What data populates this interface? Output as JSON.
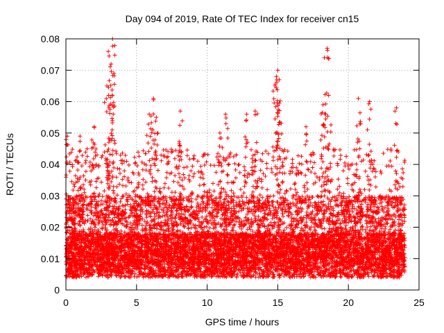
{
  "chart_data": {
    "type": "scatter",
    "title": "Day 094 of 2019, Rate Of TEC Index for receiver cn15",
    "xlabel": "GPS time / hours",
    "ylabel": "ROTI / TECUs",
    "xlim": [
      0,
      25
    ],
    "ylim": [
      0,
      0.08
    ],
    "x_ticks": [
      0,
      5,
      10,
      15,
      20,
      25
    ],
    "x_tick_labels": [
      "0",
      "5",
      "10",
      "15",
      "20",
      "25"
    ],
    "y_ticks": [
      0,
      0.01,
      0.02,
      0.03,
      0.04,
      0.05,
      0.06,
      0.07,
      0.08
    ],
    "y_tick_labels": [
      "0",
      "0.01",
      "0.02",
      "0.03",
      "0.04",
      "0.05",
      "0.06",
      "0.07",
      "0.08"
    ],
    "grid": true,
    "legend": "none",
    "marker": "+",
    "color": "#ff0000",
    "series": [
      {
        "name": "ROTI cn15",
        "x_range_hours": [
          0,
          24
        ],
        "baseline_roti": 0.012,
        "typical_max_roti": 0.04,
        "point_count_estimate": 9000,
        "notable_peaks": [
          {
            "x": 0.1,
            "y": 0.049
          },
          {
            "x": 1.0,
            "y": 0.049
          },
          {
            "x": 2.0,
            "y": 0.052
          },
          {
            "x": 2.9,
            "y": 0.065
          },
          {
            "x": 3.0,
            "y": 0.076
          },
          {
            "x": 3.2,
            "y": 0.072
          },
          {
            "x": 3.3,
            "y": 0.08
          },
          {
            "x": 3.4,
            "y": 0.069
          },
          {
            "x": 5.9,
            "y": 0.056
          },
          {
            "x": 6.2,
            "y": 0.061
          },
          {
            "x": 6.4,
            "y": 0.055
          },
          {
            "x": 8.1,
            "y": 0.057
          },
          {
            "x": 10.9,
            "y": 0.05
          },
          {
            "x": 11.3,
            "y": 0.056
          },
          {
            "x": 12.8,
            "y": 0.056
          },
          {
            "x": 13.4,
            "y": 0.057
          },
          {
            "x": 14.8,
            "y": 0.065
          },
          {
            "x": 14.9,
            "y": 0.068
          },
          {
            "x": 15.0,
            "y": 0.07
          },
          {
            "x": 15.1,
            "y": 0.067
          },
          {
            "x": 17.0,
            "y": 0.052
          },
          {
            "x": 18.2,
            "y": 0.059
          },
          {
            "x": 18.3,
            "y": 0.074
          },
          {
            "x": 18.5,
            "y": 0.077
          },
          {
            "x": 18.6,
            "y": 0.062
          },
          {
            "x": 20.7,
            "y": 0.061
          },
          {
            "x": 21.5,
            "y": 0.06
          },
          {
            "x": 23.4,
            "y": 0.058
          }
        ]
      }
    ]
  }
}
